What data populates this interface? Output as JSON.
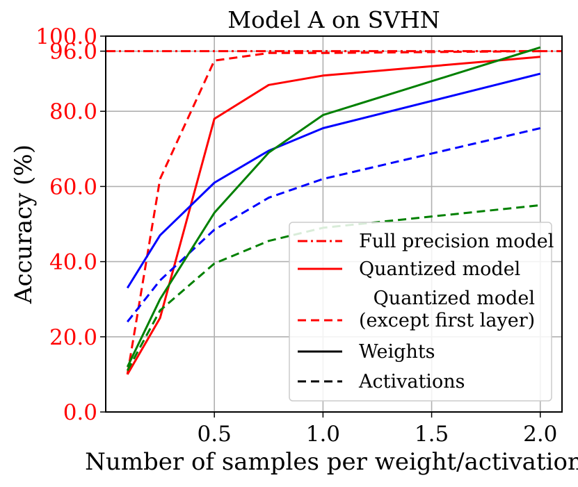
{
  "chart_data": {
    "type": "line",
    "title": "Model A on SVHN",
    "xlabel": "Number of samples per weight/activation",
    "ylabel": "Accuracy (%)",
    "xlim": [
      0.0,
      2.1
    ],
    "ylim": [
      0,
      100
    ],
    "x_ticks": [
      0.5,
      1.0,
      1.5,
      2.0
    ],
    "x_tick_labels": [
      "0.5",
      "1.0",
      "1.5",
      "2.0"
    ],
    "y_ticks": [
      0,
      20,
      40,
      60,
      80,
      96,
      100
    ],
    "y_tick_labels": [
      "0.0",
      "20.0",
      "40.0",
      "60.0",
      "80.0",
      "96.0",
      "100.0"
    ],
    "grid": true,
    "colors": {
      "red": "#ff0000",
      "blue": "#0000ff",
      "green": "#008000",
      "black": "#000000",
      "grid": "#b0b0b0",
      "y_tick_text": "#ff0000",
      "y_label_text": "#ff0000"
    },
    "reference_line": {
      "name": "Full precision model",
      "value": 96,
      "color": "#ff0000",
      "style": "dashdot"
    },
    "series": [
      {
        "name": "red-solid",
        "color": "#ff0000",
        "style": "solid",
        "x": [
          0.1,
          0.25,
          0.5,
          0.75,
          1.0,
          2.0
        ],
        "values": [
          10,
          25,
          78,
          87,
          89.5,
          94.5
        ]
      },
      {
        "name": "red-dashed",
        "color": "#ff0000",
        "style": "dashed",
        "x": [
          0.1,
          0.25,
          0.5,
          0.75,
          1.0,
          2.0
        ],
        "values": [
          10,
          62,
          93.5,
          95.5,
          95.5,
          96
        ]
      },
      {
        "name": "blue-solid",
        "color": "#0000ff",
        "style": "solid",
        "x": [
          0.1,
          0.25,
          0.5,
          0.75,
          1.0,
          2.0
        ],
        "values": [
          33,
          47,
          61,
          69.5,
          75.5,
          90
        ]
      },
      {
        "name": "blue-dashed",
        "color": "#0000ff",
        "style": "dashed",
        "x": [
          0.1,
          0.25,
          0.5,
          0.75,
          1.0,
          2.0
        ],
        "values": [
          24,
          35,
          48.5,
          57,
          62,
          75.5
        ]
      },
      {
        "name": "green-solid",
        "color": "#008000",
        "style": "solid",
        "x": [
          0.1,
          0.25,
          0.5,
          0.75,
          1.0,
          2.0
        ],
        "values": [
          12,
          30,
          53,
          69,
          79,
          97
        ]
      },
      {
        "name": "green-dashed",
        "color": "#008000",
        "style": "dashed",
        "x": [
          0.1,
          0.25,
          0.5,
          0.75,
          1.0,
          2.0
        ],
        "values": [
          11,
          27,
          39.5,
          45.5,
          49,
          55
        ]
      }
    ],
    "legend": {
      "position": "lower-right",
      "entries": [
        {
          "label": "Full precision model",
          "color": "#ff0000",
          "style": "dashdot"
        },
        {
          "label": "Quantized model",
          "color": "#ff0000",
          "style": "solid"
        },
        {
          "label_lines": [
            "Quantized model",
            "(except first layer)"
          ],
          "color": "#ff0000",
          "style": "dashed"
        },
        {
          "label": "Weights",
          "color": "#000000",
          "style": "solid"
        },
        {
          "label": "Activations",
          "color": "#000000",
          "style": "dashed"
        }
      ]
    }
  }
}
